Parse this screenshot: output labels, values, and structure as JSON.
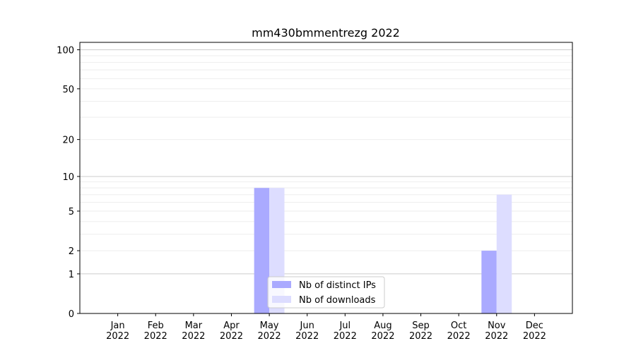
{
  "chart_data": {
    "type": "bar",
    "title": "mm430bmmentrezg 2022",
    "categories": [
      "Jan\n2022",
      "Feb\n2022",
      "Mar\n2022",
      "Apr\n2022",
      "May\n2022",
      "Jun\n2022",
      "Jul\n2022",
      "Aug\n2022",
      "Sep\n2022",
      "Oct\n2022",
      "Nov\n2022",
      "Dec\n2022"
    ],
    "series": [
      {
        "name": "Nb of distinct IPs",
        "color": "#aaaaff",
        "values": [
          0,
          0,
          0,
          0,
          8,
          0,
          0,
          0,
          0,
          0,
          2,
          0
        ]
      },
      {
        "name": "Nb of downloads",
        "color": "#ddddff",
        "values": [
          0,
          0,
          0,
          0,
          8,
          0,
          0,
          0,
          0,
          0,
          7,
          0
        ]
      }
    ],
    "y_scale": "log1p",
    "ylim": [
      0,
      114
    ],
    "yticks": [
      0,
      1,
      2,
      5,
      10,
      20,
      50,
      100
    ],
    "minor_yticks": [
      3,
      4,
      6,
      7,
      8,
      9,
      30,
      40,
      60,
      70,
      80,
      90
    ],
    "grid": true,
    "legend": "lower center"
  }
}
